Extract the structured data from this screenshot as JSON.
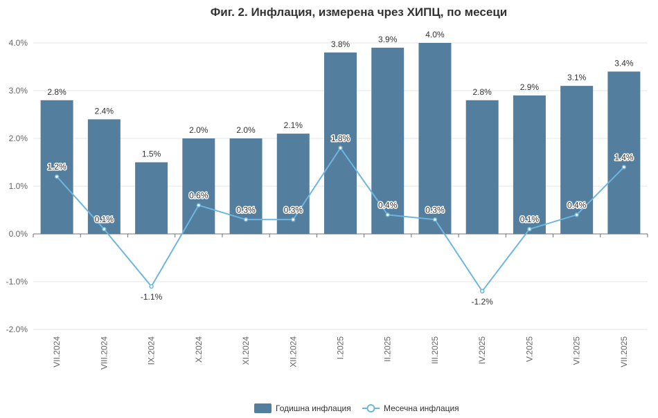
{
  "chart_data": {
    "type": "bar",
    "title": "Фиг. 2. Инфлация, измерена чрез ХИПЦ, по месеци",
    "categories": [
      "VII.2024",
      "VIII.2024",
      "IX.2024",
      "X.2024",
      "XI.2024",
      "XII.2024",
      "I.2025",
      "II.2025",
      "III.2025",
      "IV.2025",
      "V.2025",
      "VI.2025",
      "VII.2025"
    ],
    "series": [
      {
        "name": "Годишна инфлация",
        "type": "bar",
        "color": "#537e9e",
        "values": [
          2.8,
          2.4,
          1.5,
          2.0,
          2.0,
          2.1,
          3.8,
          3.9,
          4.0,
          2.8,
          2.9,
          3.1,
          3.4
        ]
      },
      {
        "name": "Месечна инфлация",
        "type": "line",
        "color": "#6db6e0",
        "values": [
          1.2,
          0.1,
          -1.1,
          0.6,
          0.3,
          0.3,
          1.8,
          0.4,
          0.3,
          -1.2,
          0.1,
          0.4,
          1.4
        ]
      }
    ],
    "ylim": [
      -2.0,
      4.0
    ],
    "yticks": [
      -2.0,
      -1.0,
      0.0,
      1.0,
      2.0,
      3.0,
      4.0
    ],
    "ytick_format": "percent_1dp",
    "grid": true,
    "legend_position": "bottom-center",
    "xtick_rotation": "vertical"
  }
}
